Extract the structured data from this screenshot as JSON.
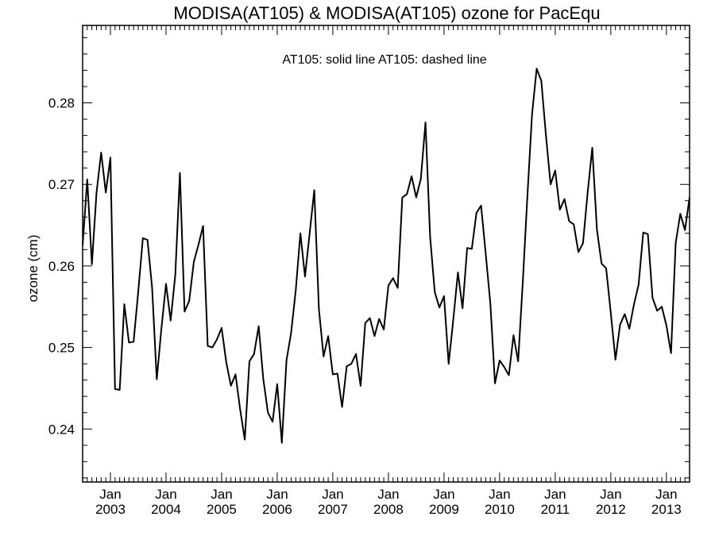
{
  "chart_data": {
    "type": "line",
    "title": "MODISA(AT105) & MODISA(AT105)  ozone for PacEqu",
    "ylabel": "ozone (cm)",
    "xlabel": "",
    "legend_text": "AT105: solid line   AT105: dashed line",
    "ylim": [
      0.2335,
      0.2895
    ],
    "xlim": [
      "2002-07",
      "2013-06"
    ],
    "y_ticks": [
      "0.24",
      "0.25",
      "0.26",
      "0.27",
      "0.28"
    ],
    "x_tick_month": "Jan",
    "x_ticks": [
      "2003",
      "2004",
      "2005",
      "2006",
      "2007",
      "2008",
      "2009",
      "2010",
      "2011",
      "2012",
      "2013"
    ],
    "grid": false,
    "series": [
      {
        "name": "AT105",
        "line_style": "solid",
        "color": "#000000",
        "x": [
          "2002-07",
          "2002-08",
          "2002-09",
          "2002-10",
          "2002-11",
          "2002-12",
          "2003-01",
          "2003-02",
          "2003-03",
          "2003-04",
          "2003-05",
          "2003-06",
          "2003-07",
          "2003-08",
          "2003-09",
          "2003-10",
          "2003-11",
          "2003-12",
          "2004-01",
          "2004-02",
          "2004-03",
          "2004-04",
          "2004-05",
          "2004-06",
          "2004-07",
          "2004-08",
          "2004-09",
          "2004-10",
          "2004-11",
          "2004-12",
          "2005-01",
          "2005-02",
          "2005-03",
          "2005-04",
          "2005-05",
          "2005-06",
          "2005-07",
          "2005-08",
          "2005-09",
          "2005-10",
          "2005-11",
          "2005-12",
          "2006-01",
          "2006-02",
          "2006-03",
          "2006-04",
          "2006-05",
          "2006-06",
          "2006-07",
          "2006-08",
          "2006-09",
          "2006-10",
          "2006-11",
          "2006-12",
          "2007-01",
          "2007-02",
          "2007-03",
          "2007-04",
          "2007-05",
          "2007-06",
          "2007-07",
          "2007-08",
          "2007-09",
          "2007-10",
          "2007-11",
          "2007-12",
          "2008-01",
          "2008-02",
          "2008-03",
          "2008-04",
          "2008-05",
          "2008-06",
          "2008-07",
          "2008-08",
          "2008-09",
          "2008-10",
          "2008-11",
          "2008-12",
          "2009-01",
          "2009-02",
          "2009-03",
          "2009-04",
          "2009-05",
          "2009-06",
          "2009-07",
          "2009-08",
          "2009-09",
          "2009-10",
          "2009-11",
          "2009-12",
          "2010-01",
          "2010-02",
          "2010-03",
          "2010-04",
          "2010-05",
          "2010-06",
          "2010-07",
          "2010-08",
          "2010-09",
          "2010-10",
          "2010-11",
          "2010-12",
          "2011-01",
          "2011-02",
          "2011-03",
          "2011-04",
          "2011-05",
          "2011-06",
          "2011-07",
          "2011-08",
          "2011-09",
          "2011-10",
          "2011-11",
          "2011-12",
          "2012-01",
          "2012-02",
          "2012-03",
          "2012-04",
          "2012-05",
          "2012-06",
          "2012-07",
          "2012-08",
          "2012-09",
          "2012-10",
          "2012-11",
          "2012-12",
          "2013-01",
          "2013-02",
          "2013-03",
          "2013-04",
          "2013-05",
          "2013-06"
        ],
        "y": [
          0.2625,
          0.2706,
          0.2602,
          0.269,
          0.2739,
          0.269,
          0.2733,
          0.2449,
          0.2448,
          0.2553,
          0.2506,
          0.2507,
          0.2568,
          0.2634,
          0.2632,
          0.2573,
          0.2461,
          0.2523,
          0.2578,
          0.2533,
          0.2589,
          0.2714,
          0.2544,
          0.2557,
          0.2605,
          0.2626,
          0.2649,
          0.2502,
          0.25,
          0.251,
          0.2524,
          0.2482,
          0.2453,
          0.2467,
          0.2424,
          0.2387,
          0.2483,
          0.2492,
          0.2526,
          0.2461,
          0.242,
          0.2409,
          0.2455,
          0.2383,
          0.2484,
          0.2518,
          0.257,
          0.264,
          0.2587,
          0.264,
          0.2693,
          0.2547,
          0.2489,
          0.2514,
          0.2467,
          0.2468,
          0.2427,
          0.2477,
          0.248,
          0.2492,
          0.2453,
          0.253,
          0.2536,
          0.2514,
          0.2535,
          0.2522,
          0.2576,
          0.2585,
          0.2573,
          0.2684,
          0.2688,
          0.271,
          0.2684,
          0.2707,
          0.2776,
          0.2636,
          0.2568,
          0.2549,
          0.2563,
          0.248,
          0.2534,
          0.2592,
          0.2548,
          0.2622,
          0.2621,
          0.2665,
          0.2674,
          0.2615,
          0.2554,
          0.2456,
          0.2484,
          0.2476,
          0.2466,
          0.2515,
          0.2483,
          0.258,
          0.2686,
          0.2786,
          0.2842,
          0.2827,
          0.276,
          0.27,
          0.2717,
          0.2669,
          0.2682,
          0.2655,
          0.2651,
          0.2617,
          0.2628,
          0.269,
          0.2745,
          0.2645,
          0.2603,
          0.2597,
          0.2542,
          0.2485,
          0.2528,
          0.2541,
          0.2523,
          0.2553,
          0.2577,
          0.2641,
          0.2639,
          0.2561,
          0.2545,
          0.255,
          0.2527,
          0.2493,
          0.2628,
          0.2664,
          0.2644,
          0.2684
        ]
      }
    ]
  }
}
